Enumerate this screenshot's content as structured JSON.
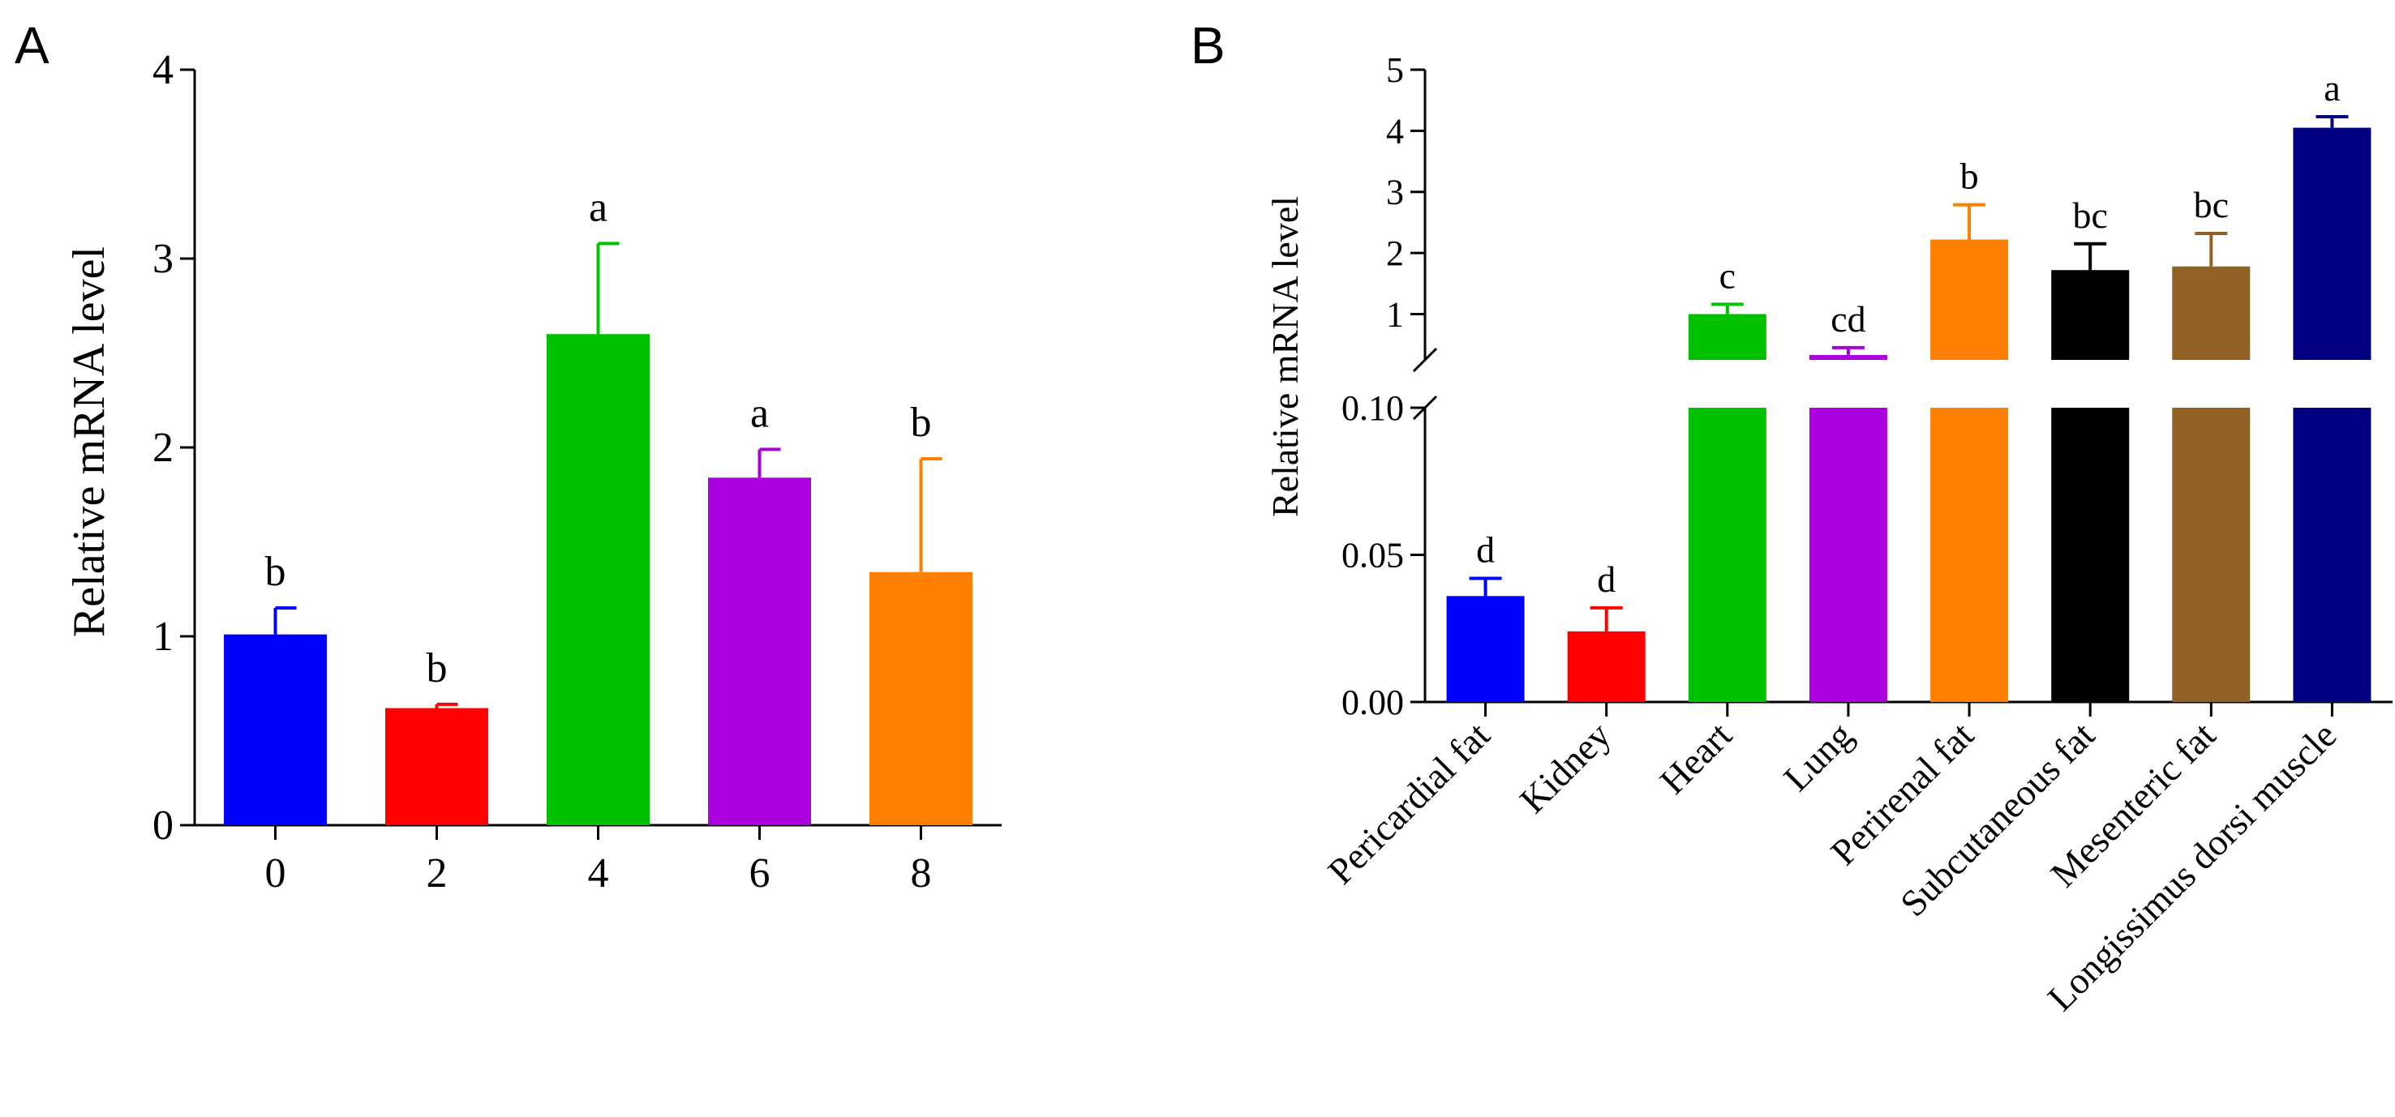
{
  "chart_data": [
    {
      "panel": "A",
      "type": "bar",
      "title": "",
      "xlabel": "",
      "ylabel": "Relative mRNA level",
      "ylim": [
        0,
        4
      ],
      "yticks": [
        "0",
        "1",
        "2",
        "3",
        "4"
      ],
      "categories": [
        "0",
        "2",
        "4",
        "6",
        "8"
      ],
      "values": [
        1.01,
        0.62,
        2.6,
        1.84,
        1.34
      ],
      "errors": [
        0.14,
        0.02,
        0.48,
        0.15,
        0.6
      ],
      "labels": [
        "b",
        "b",
        "a",
        "a",
        "b"
      ],
      "colors": [
        "#0000ff",
        "#ff0000",
        "#00c000",
        "#aa00dd",
        "#ff8000"
      ]
    },
    {
      "panel": "B",
      "type": "bar",
      "title": "",
      "xlabel": "",
      "ylabel": "Relative mRNA level",
      "y_axis_break": true,
      "lower_ylim": [
        0,
        0.1
      ],
      "lower_yticks": [
        "0.00",
        "0.05",
        "0.10"
      ],
      "upper_ylim": [
        0.25,
        5
      ],
      "upper_yticks": [
        "1",
        "2",
        "3",
        "4",
        "5"
      ],
      "categories": [
        "Pericardial fat",
        "Kidney",
        "Heart",
        "Lung",
        "Perirenal fat",
        "Subcutaneous fat",
        "Mesenteric fat",
        "Longissimus dorsi muscle"
      ],
      "values": [
        0.036,
        0.024,
        1.0,
        0.33,
        2.22,
        1.72,
        1.78,
        4.05
      ],
      "errors": [
        0.006,
        0.008,
        0.16,
        0.12,
        0.57,
        0.43,
        0.54,
        0.18
      ],
      "labels": [
        "d",
        "d",
        "c",
        "cd",
        "b",
        "bc",
        "bc",
        "a"
      ],
      "colors": [
        "#0000ff",
        "#ff0000",
        "#00c000",
        "#aa00dd",
        "#ff8000",
        "#000000",
        "#916124",
        "#000080"
      ]
    }
  ],
  "panel_letters": [
    "A",
    "B"
  ]
}
